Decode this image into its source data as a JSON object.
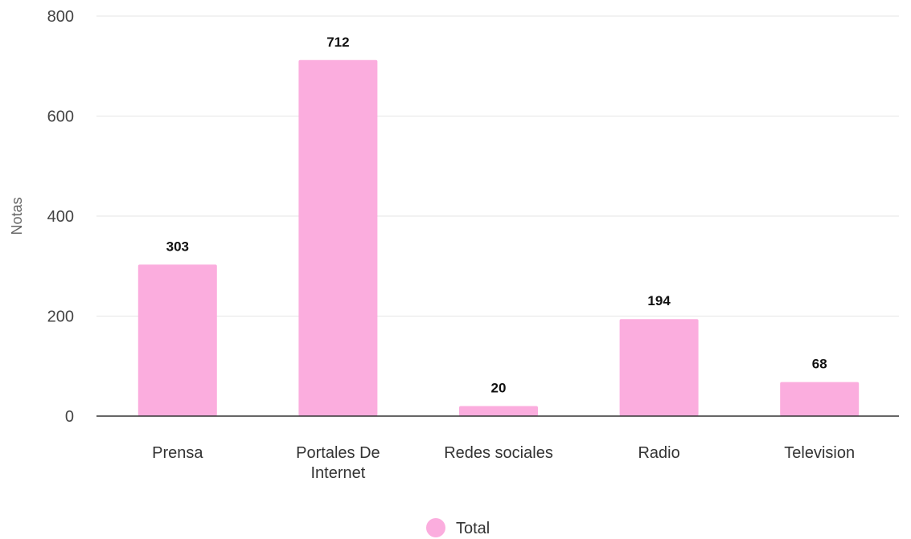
{
  "colors": {
    "bar": "#fbadde",
    "grid": "#e6e6e6",
    "baseline": "#333333"
  },
  "chart_data": {
    "type": "bar",
    "categories": [
      [
        "Prensa"
      ],
      [
        "Portales De",
        "Internet"
      ],
      [
        "Redes sociales"
      ],
      [
        "Radio"
      ],
      [
        "Television"
      ]
    ],
    "values": [
      303,
      712,
      20,
      194,
      68
    ],
    "series": [
      {
        "name": "Total",
        "values": [
          303,
          712,
          20,
          194,
          68
        ]
      }
    ],
    "ylabel": "Notas",
    "xlabel": "",
    "ylim": [
      0,
      800
    ],
    "yticks": [
      0,
      200,
      400,
      600,
      800
    ],
    "grid": true,
    "legend": "bottom-center"
  }
}
